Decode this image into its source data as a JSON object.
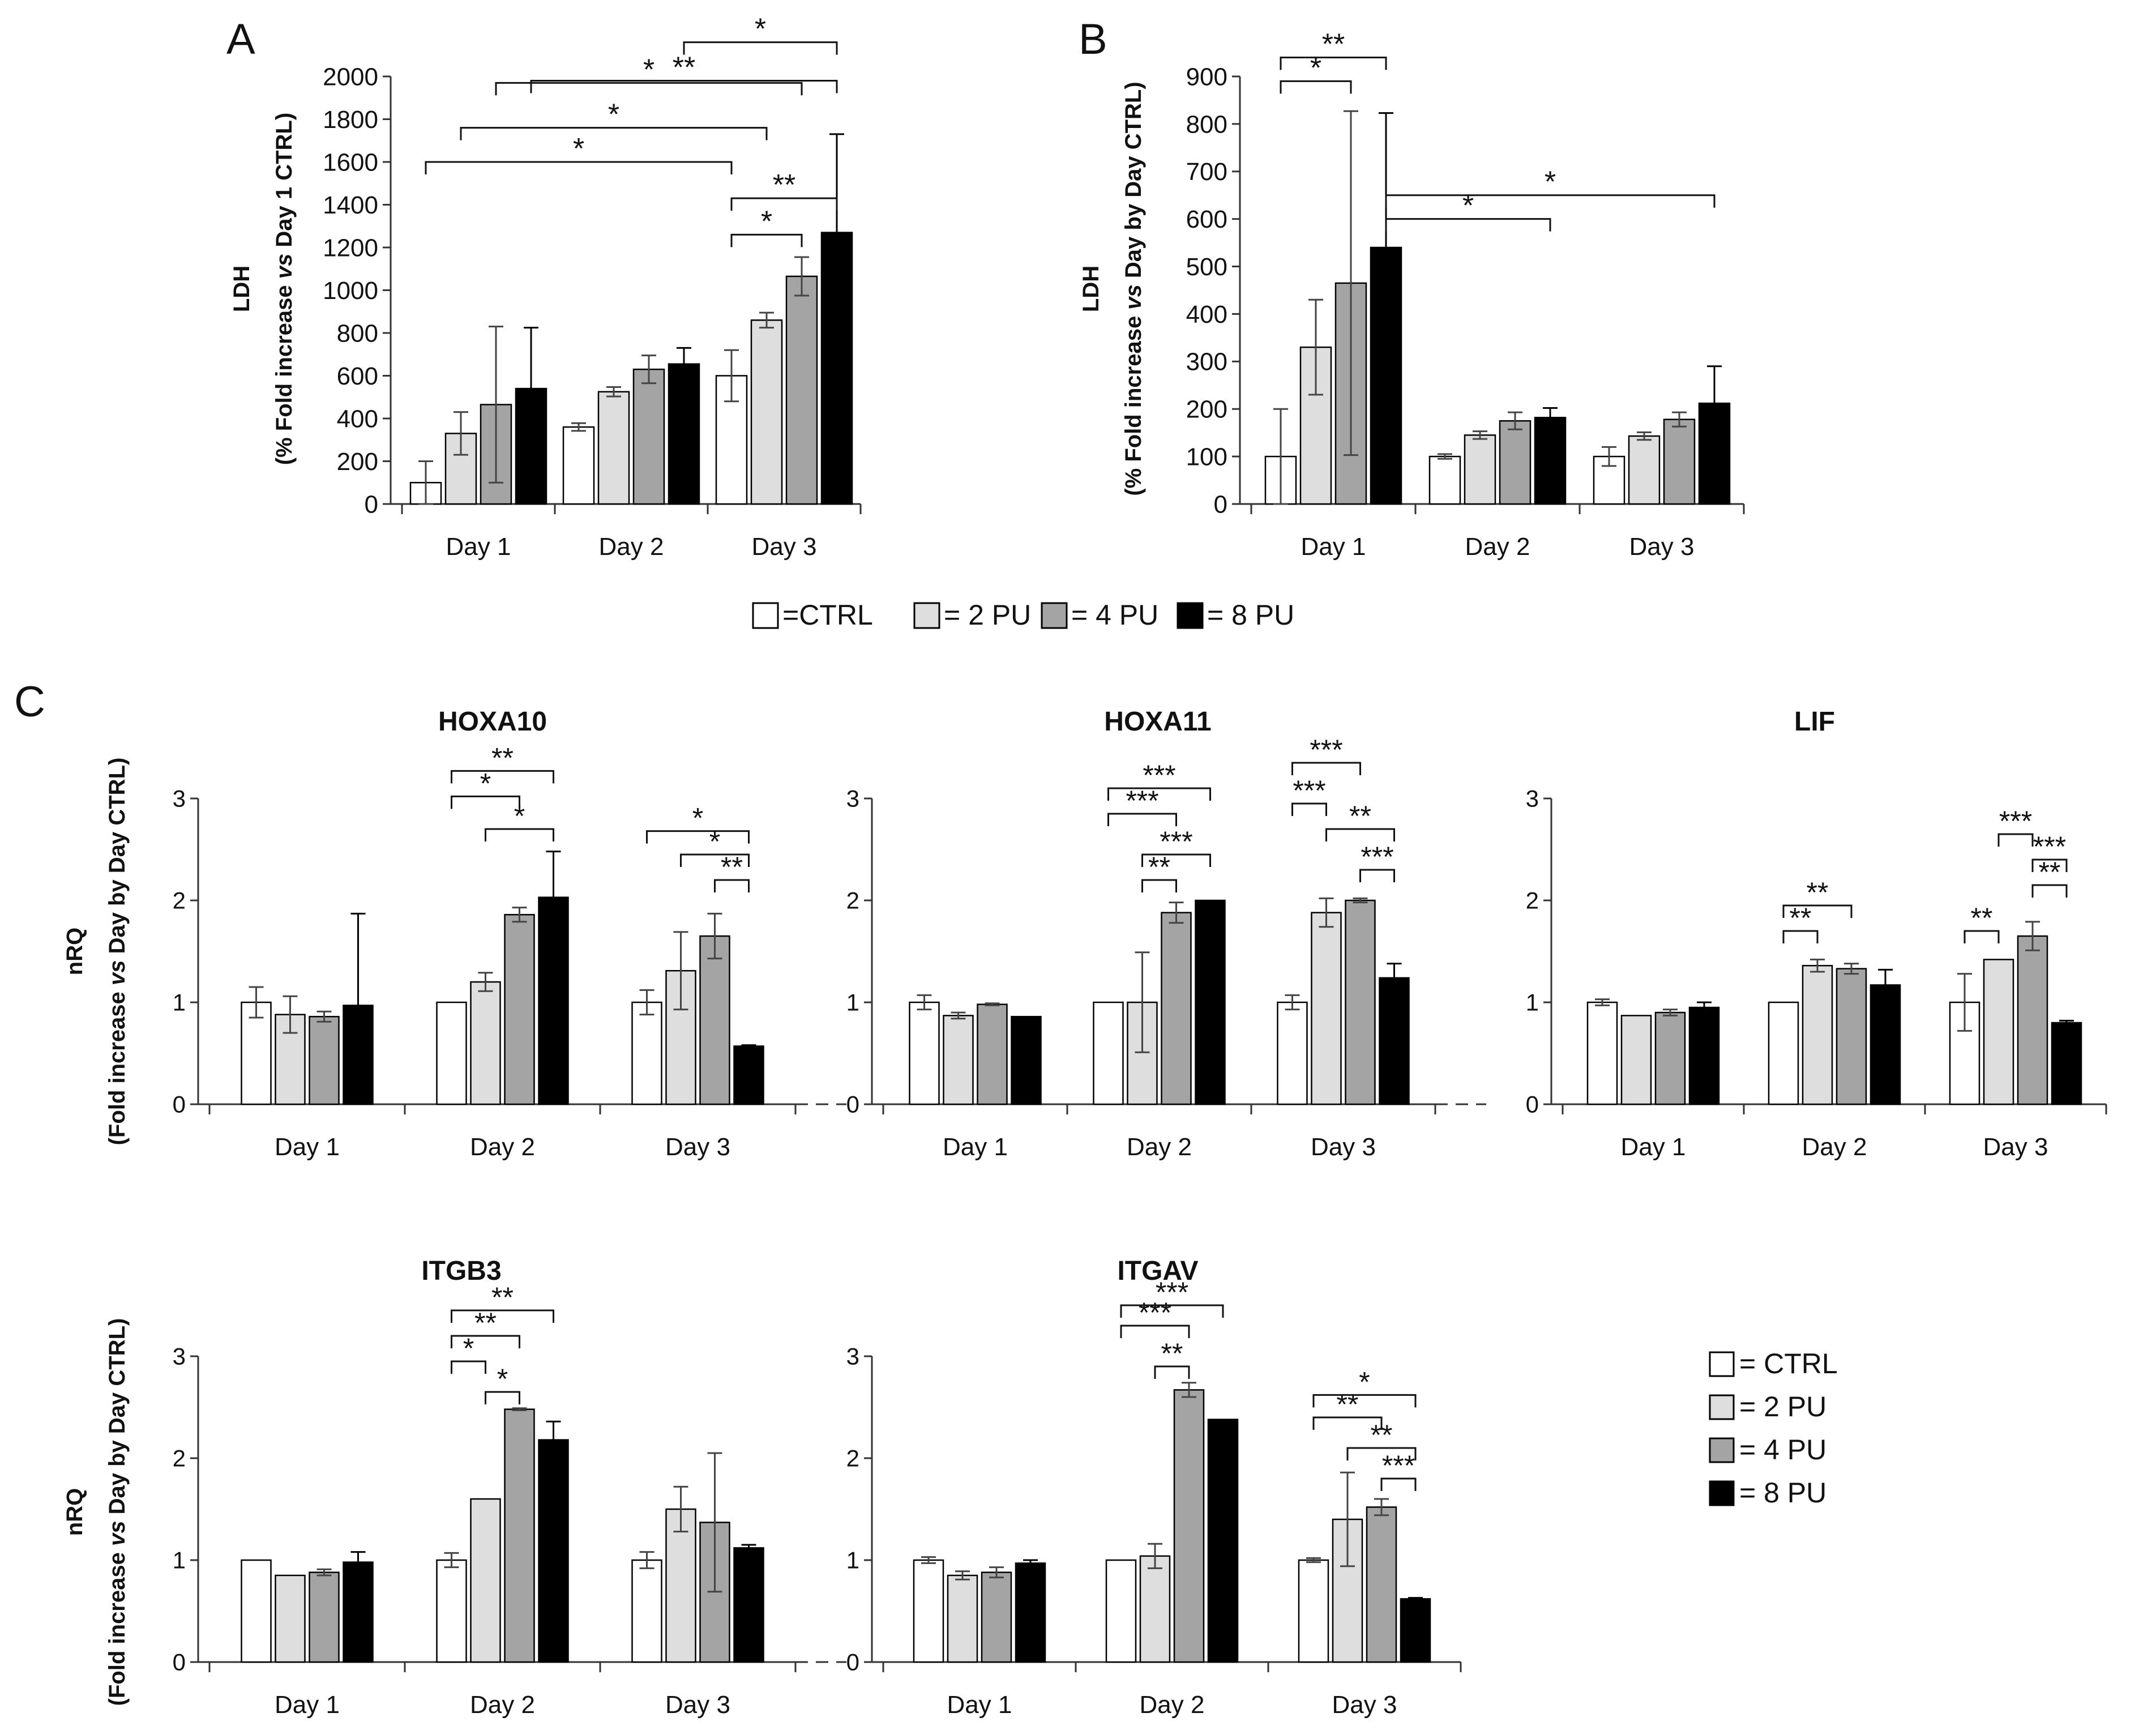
{
  "legend_series": [
    "CTRL",
    "2 PU",
    "4 PU",
    "8 PU"
  ],
  "colors": {
    "CTRL": "#ffffff",
    "2 PU": "#dedede",
    "4 PU": "#a4a4a4",
    "8 PU": "#000000"
  },
  "legend_top": {
    "items": [
      "=CTRL",
      "= 2 PU",
      "= 4 PU",
      "= 8 PU"
    ]
  },
  "legend_right": {
    "items": [
      "= CTRL",
      "= 2 PU",
      "= 4 PU",
      "= 8 PU"
    ]
  },
  "chart_data": [
    {
      "panel": "A",
      "type": "bar",
      "panel_label": "A",
      "title": "",
      "ylabel_line1": "LDH",
      "ylabel_line2_parts": [
        "(% Fold increase ",
        "vs",
        " Day 1 CTRL)"
      ],
      "ylim": [
        0,
        2000
      ],
      "yticks": [
        "0",
        "200",
        "400",
        "600",
        "800",
        "1000",
        "1200",
        "1400",
        "1600",
        "1800",
        "2000"
      ],
      "yticks_values": [
        0,
        200,
        400,
        600,
        800,
        1000,
        1200,
        1400,
        1600,
        1800,
        2000
      ],
      "categories": [
        "Day 1",
        "Day 2",
        "Day 3"
      ],
      "series": [
        {
          "name": "CTRL",
          "values": [
            100,
            360,
            600
          ],
          "errors": [
            100,
            18,
            120
          ]
        },
        {
          "name": "2 PU",
          "values": [
            330,
            525,
            860
          ],
          "errors": [
            100,
            22,
            35
          ]
        },
        {
          "name": "4 PU",
          "values": [
            465,
            630,
            1065
          ],
          "errors": [
            365,
            65,
            90
          ]
        },
        {
          "name": "8 PU",
          "values": [
            540,
            655,
            1270
          ],
          "errors": [
            285,
            75,
            460
          ]
        }
      ],
      "significance": [
        {
          "from": [
            0,
            0
          ],
          "to": [
            2,
            0
          ],
          "y": 1600,
          "label": "*"
        },
        {
          "from": [
            0,
            1
          ],
          "to": [
            2,
            1
          ],
          "y": 1760,
          "label": "*"
        },
        {
          "from": [
            0,
            2
          ],
          "to": [
            2,
            2
          ],
          "y": 1970,
          "label": "*"
        },
        {
          "from": [
            0,
            3
          ],
          "to": [
            2,
            3
          ],
          "y": 1980,
          "label": "**"
        },
        {
          "from": [
            1,
            3
          ],
          "to": [
            2,
            3
          ],
          "y": 2160,
          "label": "*"
        },
        {
          "from": [
            2,
            0
          ],
          "to": [
            2,
            2
          ],
          "y": 1260,
          "label": "*"
        },
        {
          "from": [
            2,
            0
          ],
          "to": [
            2,
            3
          ],
          "y": 1430,
          "label": "**"
        }
      ]
    },
    {
      "panel": "B",
      "type": "bar",
      "panel_label": "B",
      "title": "",
      "ylabel_line1": "LDH",
      "ylabel_line2_parts": [
        "(% Fold increase ",
        "vs",
        " Day by Day CTRL)"
      ],
      "ylim": [
        0,
        900
      ],
      "yticks": [
        "0",
        "100",
        "200",
        "300",
        "400",
        "500",
        "600",
        "700",
        "800",
        "900"
      ],
      "yticks_values": [
        0,
        100,
        200,
        300,
        400,
        500,
        600,
        700,
        800,
        900
      ],
      "categories": [
        "Day 1",
        "Day 2",
        "Day 3"
      ],
      "series": [
        {
          "name": "CTRL",
          "values": [
            100,
            100,
            100
          ],
          "errors": [
            100,
            5,
            20
          ]
        },
        {
          "name": "2 PU",
          "values": [
            330,
            145,
            143
          ],
          "errors": [
            100,
            8,
            8
          ]
        },
        {
          "name": "4 PU",
          "values": [
            465,
            175,
            178
          ],
          "errors": [
            362,
            18,
            15
          ]
        },
        {
          "name": "8 PU",
          "values": [
            540,
            182,
            212
          ],
          "errors": [
            283,
            20,
            78
          ]
        }
      ],
      "significance": [
        {
          "from": [
            0,
            0
          ],
          "to": [
            0,
            2
          ],
          "y": 890,
          "label": "*"
        },
        {
          "from": [
            0,
            0
          ],
          "to": [
            0,
            3
          ],
          "y": 940,
          "label": "**"
        },
        {
          "from": [
            0,
            3
          ],
          "to": [
            1,
            3
          ],
          "y": 600,
          "label": "*"
        },
        {
          "from": [
            0,
            3
          ],
          "to": [
            2,
            3
          ],
          "y": 650,
          "label": "*"
        }
      ]
    },
    {
      "panel": "C",
      "type": "bar",
      "panel_label": "C",
      "title": "HOXA10",
      "ylabel_line1": "nRQ",
      "ylabel_line2_parts": [
        "(Fold increase ",
        "vs",
        " Day by Day CTRL)"
      ],
      "ylim": [
        0,
        3
      ],
      "yticks": [
        "0",
        "1",
        "2",
        "3"
      ],
      "yticks_values": [
        0,
        1,
        2,
        3
      ],
      "categories": [
        "Day 1",
        "Day 2",
        "Day 3"
      ],
      "dashed_end": true,
      "series": [
        {
          "name": "CTRL",
          "values": [
            1.0,
            1.0,
            1.0
          ],
          "errors": [
            0.15,
            0.0,
            0.12
          ]
        },
        {
          "name": "2 PU",
          "values": [
            0.88,
            1.2,
            1.31
          ],
          "errors": [
            0.18,
            0.09,
            0.38
          ]
        },
        {
          "name": "4 PU",
          "values": [
            0.86,
            1.86,
            1.65
          ],
          "errors": [
            0.05,
            0.07,
            0.22
          ]
        },
        {
          "name": "8 PU",
          "values": [
            0.97,
            2.03,
            0.57
          ],
          "errors": [
            0.9,
            0.45,
            0.01
          ]
        }
      ],
      "significance": [
        {
          "from": [
            1,
            0
          ],
          "to": [
            1,
            2
          ],
          "y": 3.02,
          "label": "*"
        },
        {
          "from": [
            1,
            0
          ],
          "to": [
            1,
            3
          ],
          "y": 3.27,
          "label": "**"
        },
        {
          "from": [
            1,
            1
          ],
          "to": [
            1,
            3
          ],
          "y": 2.7,
          "label": "*"
        },
        {
          "from": [
            2,
            0
          ],
          "to": [
            2,
            3
          ],
          "y": 2.68,
          "label": "*"
        },
        {
          "from": [
            2,
            1
          ],
          "to": [
            2,
            3
          ],
          "y": 2.45,
          "label": "*"
        },
        {
          "from": [
            2,
            2
          ],
          "to": [
            2,
            3
          ],
          "y": 2.2,
          "label": "**"
        }
      ]
    },
    {
      "panel": "C",
      "type": "bar",
      "panel_label": "",
      "title": "HOXA11",
      "ylabel_line1": "",
      "ylabel_line2_parts": [],
      "ylim": [
        0,
        3
      ],
      "yticks": [
        "0",
        "1",
        "2",
        "3"
      ],
      "yticks_values": [
        0,
        1,
        2,
        3
      ],
      "categories": [
        "Day 1",
        "Day 2",
        "Day 3"
      ],
      "dashed_end": true,
      "series": [
        {
          "name": "CTRL",
          "values": [
            1.0,
            1.0,
            1.0
          ],
          "errors": [
            0.07,
            0.0,
            0.07
          ]
        },
        {
          "name": "2 PU",
          "values": [
            0.87,
            1.0,
            1.88
          ],
          "errors": [
            0.03,
            0.49,
            0.14
          ]
        },
        {
          "name": "4 PU",
          "values": [
            0.98,
            1.88,
            2.0
          ],
          "errors": [
            0.01,
            0.1,
            0.02
          ]
        },
        {
          "name": "8 PU",
          "values": [
            0.86,
            2.0,
            1.24
          ],
          "errors": [
            0.0,
            0.0,
            0.14
          ]
        }
      ],
      "significance": [
        {
          "from": [
            1,
            0
          ],
          "to": [
            1,
            2
          ],
          "y": 2.85,
          "label": "***"
        },
        {
          "from": [
            1,
            0
          ],
          "to": [
            1,
            3
          ],
          "y": 3.1,
          "label": "***"
        },
        {
          "from": [
            1,
            1
          ],
          "to": [
            1,
            2
          ],
          "y": 2.2,
          "label": "**"
        },
        {
          "from": [
            1,
            1
          ],
          "to": [
            1,
            3
          ],
          "y": 2.45,
          "label": "***"
        },
        {
          "from": [
            2,
            0
          ],
          "to": [
            2,
            1
          ],
          "y": 2.95,
          "label": "***"
        },
        {
          "from": [
            2,
            0
          ],
          "to": [
            2,
            2
          ],
          "y": 3.35,
          "label": "***"
        },
        {
          "from": [
            2,
            1
          ],
          "to": [
            2,
            3
          ],
          "y": 2.7,
          "label": "**"
        },
        {
          "from": [
            2,
            2
          ],
          "to": [
            2,
            3
          ],
          "y": 2.3,
          "label": "***"
        }
      ]
    },
    {
      "panel": "C",
      "type": "bar",
      "panel_label": "",
      "title": "LIF",
      "ylabel_line1": "",
      "ylabel_line2_parts": [],
      "ylim": [
        0,
        3
      ],
      "yticks": [
        "0",
        "1",
        "2",
        "3"
      ],
      "yticks_values": [
        0,
        1,
        2,
        3
      ],
      "categories": [
        "Day 1",
        "Day 2",
        "Day 3"
      ],
      "dashed_end": false,
      "series": [
        {
          "name": "CTRL",
          "values": [
            1.0,
            1.0,
            1.0
          ],
          "errors": [
            0.03,
            0.0,
            0.28
          ]
        },
        {
          "name": "2 PU",
          "values": [
            0.87,
            1.36,
            1.42
          ],
          "errors": [
            0.0,
            0.06,
            0.0
          ]
        },
        {
          "name": "4 PU",
          "values": [
            0.9,
            1.33,
            1.65
          ],
          "errors": [
            0.03,
            0.05,
            0.14
          ]
        },
        {
          "name": "8 PU",
          "values": [
            0.95,
            1.17,
            0.8
          ],
          "errors": [
            0.05,
            0.15,
            0.02
          ]
        }
      ],
      "significance": [
        {
          "from": [
            1,
            0
          ],
          "to": [
            1,
            1
          ],
          "y": 1.7,
          "label": "**"
        },
        {
          "from": [
            1,
            0
          ],
          "to": [
            1,
            2
          ],
          "y": 1.95,
          "label": "**"
        },
        {
          "from": [
            2,
            0
          ],
          "to": [
            2,
            1
          ],
          "y": 1.7,
          "label": "**"
        },
        {
          "from": [
            2,
            1
          ],
          "to": [
            2,
            2
          ],
          "y": 2.65,
          "label": "***"
        },
        {
          "from": [
            2,
            2
          ],
          "to": [
            2,
            3
          ],
          "y": 2.4,
          "label": "***"
        },
        {
          "from": [
            2,
            2
          ],
          "to": [
            2,
            3
          ],
          "y": 2.15,
          "label": "**"
        }
      ]
    },
    {
      "panel": "C",
      "type": "bar",
      "panel_label": "",
      "title": "ITGB3",
      "ylabel_line1": "nRQ",
      "ylabel_line2_parts": [
        "(Fold increase ",
        "vs",
        " Day by Day CTRL)"
      ],
      "ylim": [
        0,
        3
      ],
      "yticks": [
        "0",
        "1",
        "2",
        "3"
      ],
      "yticks_values": [
        0,
        1,
        2,
        3
      ],
      "categories": [
        "Day 1",
        "Day 2",
        "Day 3"
      ],
      "dashed_end": true,
      "series": [
        {
          "name": "CTRL",
          "values": [
            1.0,
            1.0,
            1.0
          ],
          "errors": [
            0.0,
            0.07,
            0.08
          ]
        },
        {
          "name": "2 PU",
          "values": [
            0.85,
            1.6,
            1.5
          ],
          "errors": [
            0.0,
            0.0,
            0.22
          ]
        },
        {
          "name": "4 PU",
          "values": [
            0.88,
            2.48,
            1.37
          ],
          "errors": [
            0.03,
            0.01,
            0.68
          ]
        },
        {
          "name": "8 PU",
          "values": [
            0.98,
            2.18,
            1.12
          ],
          "errors": [
            0.1,
            0.18,
            0.03
          ]
        }
      ],
      "significance": [
        {
          "from": [
            1,
            0
          ],
          "to": [
            1,
            1
          ],
          "y": 2.95,
          "label": "*"
        },
        {
          "from": [
            1,
            0
          ],
          "to": [
            1,
            2
          ],
          "y": 3.2,
          "label": "**"
        },
        {
          "from": [
            1,
            0
          ],
          "to": [
            1,
            3
          ],
          "y": 3.45,
          "label": "**"
        },
        {
          "from": [
            1,
            1
          ],
          "to": [
            1,
            2
          ],
          "y": 2.65,
          "label": "*"
        }
      ]
    },
    {
      "panel": "C",
      "type": "bar",
      "panel_label": "",
      "title": "ITGAV",
      "ylabel_line1": "",
      "ylabel_line2_parts": [],
      "ylim": [
        0,
        3
      ],
      "yticks": [
        "0",
        "1",
        "2",
        "3"
      ],
      "yticks_values": [
        0,
        1,
        2,
        3
      ],
      "categories": [
        "Day 1",
        "Day 2",
        "Day 3"
      ],
      "dashed_end": false,
      "series": [
        {
          "name": "CTRL",
          "values": [
            1.0,
            1.0,
            1.0
          ],
          "errors": [
            0.03,
            0.0,
            0.02
          ]
        },
        {
          "name": "2 PU",
          "values": [
            0.85,
            1.04,
            1.4
          ],
          "errors": [
            0.04,
            0.12,
            0.46
          ]
        },
        {
          "name": "4 PU",
          "values": [
            0.88,
            2.67,
            1.52
          ],
          "errors": [
            0.05,
            0.07,
            0.08
          ]
        },
        {
          "name": "8 PU",
          "values": [
            0.97,
            2.38,
            0.62
          ],
          "errors": [
            0.03,
            0.0,
            0.01
          ]
        }
      ],
      "significance": [
        {
          "from": [
            1,
            0
          ],
          "to": [
            1,
            2
          ],
          "y": 3.3,
          "label": "***"
        },
        {
          "from": [
            1,
            0
          ],
          "to": [
            1,
            3
          ],
          "y": 3.5,
          "label": "***"
        },
        {
          "from": [
            1,
            1
          ],
          "to": [
            1,
            2
          ],
          "y": 2.9,
          "label": "**"
        },
        {
          "from": [
            2,
            0
          ],
          "to": [
            2,
            2
          ],
          "y": 2.4,
          "label": "**"
        },
        {
          "from": [
            2,
            0
          ],
          "to": [
            2,
            3
          ],
          "y": 2.62,
          "label": "*"
        },
        {
          "from": [
            2,
            1
          ],
          "to": [
            2,
            3
          ],
          "y": 2.1,
          "label": "**"
        },
        {
          "from": [
            2,
            2
          ],
          "to": [
            2,
            3
          ],
          "y": 1.8,
          "label": "***"
        }
      ]
    }
  ]
}
